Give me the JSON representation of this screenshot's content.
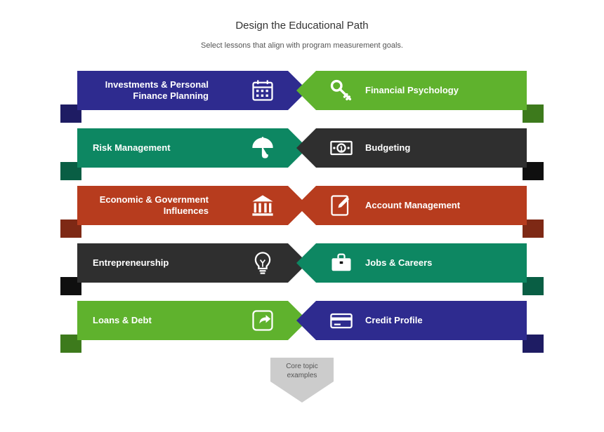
{
  "header": {
    "title": "Design the Educational Path",
    "subtitle": "Select lessons that align with program measurement goals."
  },
  "pointer": {
    "label": "Core topic\nexamples",
    "arrow_color": "#cccccc",
    "text_color": "#555555"
  },
  "colors": {
    "purple": "#2e2b8f",
    "purple_fold": "#1e1c63",
    "teal": "#0d8762",
    "teal_fold": "#095e44",
    "rust": "#b73c1e",
    "rust_fold": "#7e2915",
    "charcoal": "#2f2f2f",
    "charcoal_fold": "#0f0f0f",
    "green": "#5fb22d",
    "green_fold": "#3d7a1c",
    "green2": "#5fb22d",
    "green2_fold": "#3d7a1c",
    "teal2": "#0d8762",
    "teal2_fold": "#095e44"
  },
  "layout": {
    "ribbon_height": 56,
    "ribbon_gap": 16,
    "arrow_width": 28,
    "fold_size": 26
  },
  "left": [
    {
      "id": "investments",
      "label": "Investments & Personal Finance Planning",
      "icon": "calendar",
      "color": "#2e2b8f",
      "fold": "#1e1c63"
    },
    {
      "id": "risk",
      "label": "Risk Management",
      "icon": "umbrella",
      "color": "#0d8762",
      "fold": "#095e44"
    },
    {
      "id": "economic",
      "label": "Economic & Government Influences",
      "icon": "bank",
      "color": "#b73c1e",
      "fold": "#7e2915"
    },
    {
      "id": "entrepreneurship",
      "label": "Entrepreneurship",
      "icon": "bulb",
      "color": "#2f2f2f",
      "fold": "#0f0f0f"
    },
    {
      "id": "loans",
      "label": "Loans & Debt",
      "icon": "share",
      "color": "#5fb22d",
      "fold": "#3d7a1c"
    }
  ],
  "right": [
    {
      "id": "psychology",
      "label": "Financial Psychology",
      "icon": "key",
      "color": "#5fb22d",
      "fold": "#3d7a1c"
    },
    {
      "id": "budgeting",
      "label": "Budgeting",
      "icon": "money",
      "color": "#2f2f2f",
      "fold": "#0f0f0f"
    },
    {
      "id": "account",
      "label": "Account Management",
      "icon": "edit",
      "color": "#b73c1e",
      "fold": "#7e2915"
    },
    {
      "id": "jobs",
      "label": "Jobs & Careers",
      "icon": "briefcase",
      "color": "#0d8762",
      "fold": "#095e44"
    },
    {
      "id": "credit",
      "label": "Credit Profile",
      "icon": "card",
      "color": "#2e2b8f",
      "fold": "#1e1c63"
    }
  ]
}
